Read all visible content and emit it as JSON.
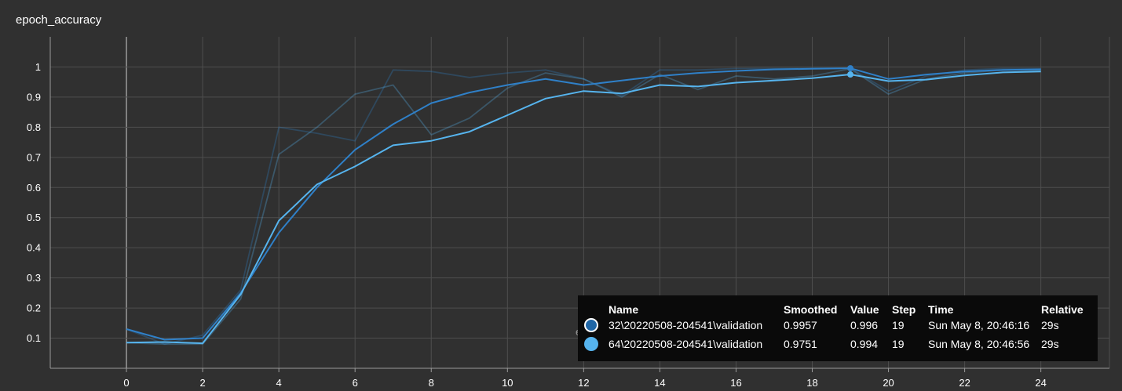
{
  "chart_data": {
    "type": "line",
    "title": "epoch_accuracy",
    "xlim": [
      -2,
      25.8
    ],
    "ylim": [
      0,
      1.1
    ],
    "x_ticks": [
      0,
      2,
      4,
      6,
      8,
      10,
      12,
      14,
      16,
      18,
      20,
      22,
      24
    ],
    "y_ticks": [
      0.1,
      0.2,
      0.3,
      0.4,
      0.5,
      0.6,
      0.7,
      0.8,
      0.9,
      1
    ],
    "grid": true,
    "series": [
      {
        "name": "32\\20220508-204541\\validation",
        "color": "#2f80c8",
        "x": [
          0,
          1,
          2,
          3,
          4,
          5,
          6,
          7,
          8,
          9,
          10,
          11,
          12,
          13,
          14,
          15,
          16,
          17,
          18,
          19,
          20,
          21,
          22,
          23,
          24
        ],
        "raw": [
          0.13,
          0.08,
          0.11,
          0.26,
          0.8,
          0.78,
          0.755,
          0.99,
          0.985,
          0.965,
          0.98,
          0.99,
          0.96,
          0.905,
          0.99,
          0.99,
          0.995,
          0.995,
          0.996,
          0.996,
          0.92,
          0.97,
          0.99,
          0.995,
          0.995
        ],
        "smoothed": [
          0.13,
          0.095,
          0.1,
          0.25,
          0.45,
          0.6,
          0.725,
          0.81,
          0.88,
          0.915,
          0.94,
          0.96,
          0.94,
          0.955,
          0.97,
          0.98,
          0.987,
          0.992,
          0.994,
          0.9957,
          0.96,
          0.975,
          0.985,
          0.99,
          0.992
        ]
      },
      {
        "name": "64\\20220508-204541\\validation",
        "color": "#56b4ee",
        "x": [
          0,
          1,
          2,
          3,
          4,
          5,
          6,
          7,
          8,
          9,
          10,
          11,
          12,
          13,
          14,
          15,
          16,
          17,
          18,
          19,
          20,
          21,
          22,
          23,
          24
        ],
        "raw": [
          0.085,
          0.08,
          0.08,
          0.23,
          0.71,
          0.8,
          0.91,
          0.94,
          0.775,
          0.83,
          0.93,
          0.98,
          0.96,
          0.9,
          0.975,
          0.925,
          0.97,
          0.96,
          0.97,
          0.994,
          0.91,
          0.96,
          0.98,
          0.99,
          0.99
        ],
        "smoothed": [
          0.085,
          0.087,
          0.083,
          0.245,
          0.49,
          0.61,
          0.67,
          0.74,
          0.755,
          0.785,
          0.84,
          0.895,
          0.92,
          0.912,
          0.94,
          0.935,
          0.948,
          0.955,
          0.963,
          0.9751,
          0.953,
          0.958,
          0.972,
          0.982,
          0.985
        ]
      }
    ],
    "hover_step": 19,
    "overlap_text": "epoch_loss"
  },
  "tooltip": {
    "headers": {
      "name": "Name",
      "smoothed": "Smoothed",
      "value": "Value",
      "step": "Step",
      "time": "Time",
      "relative": "Relative"
    },
    "rows": [
      {
        "name": "32\\20220508-204541\\validation",
        "smoothed": "0.9957",
        "value": "0.996",
        "step": "19",
        "time": "Sun May 8, 20:46:16",
        "relative": "29s"
      },
      {
        "name": "64\\20220508-204541\\validation",
        "smoothed": "0.9751",
        "value": "0.994",
        "step": "19",
        "time": "Sun May 8, 20:46:56",
        "relative": "29s"
      }
    ]
  }
}
